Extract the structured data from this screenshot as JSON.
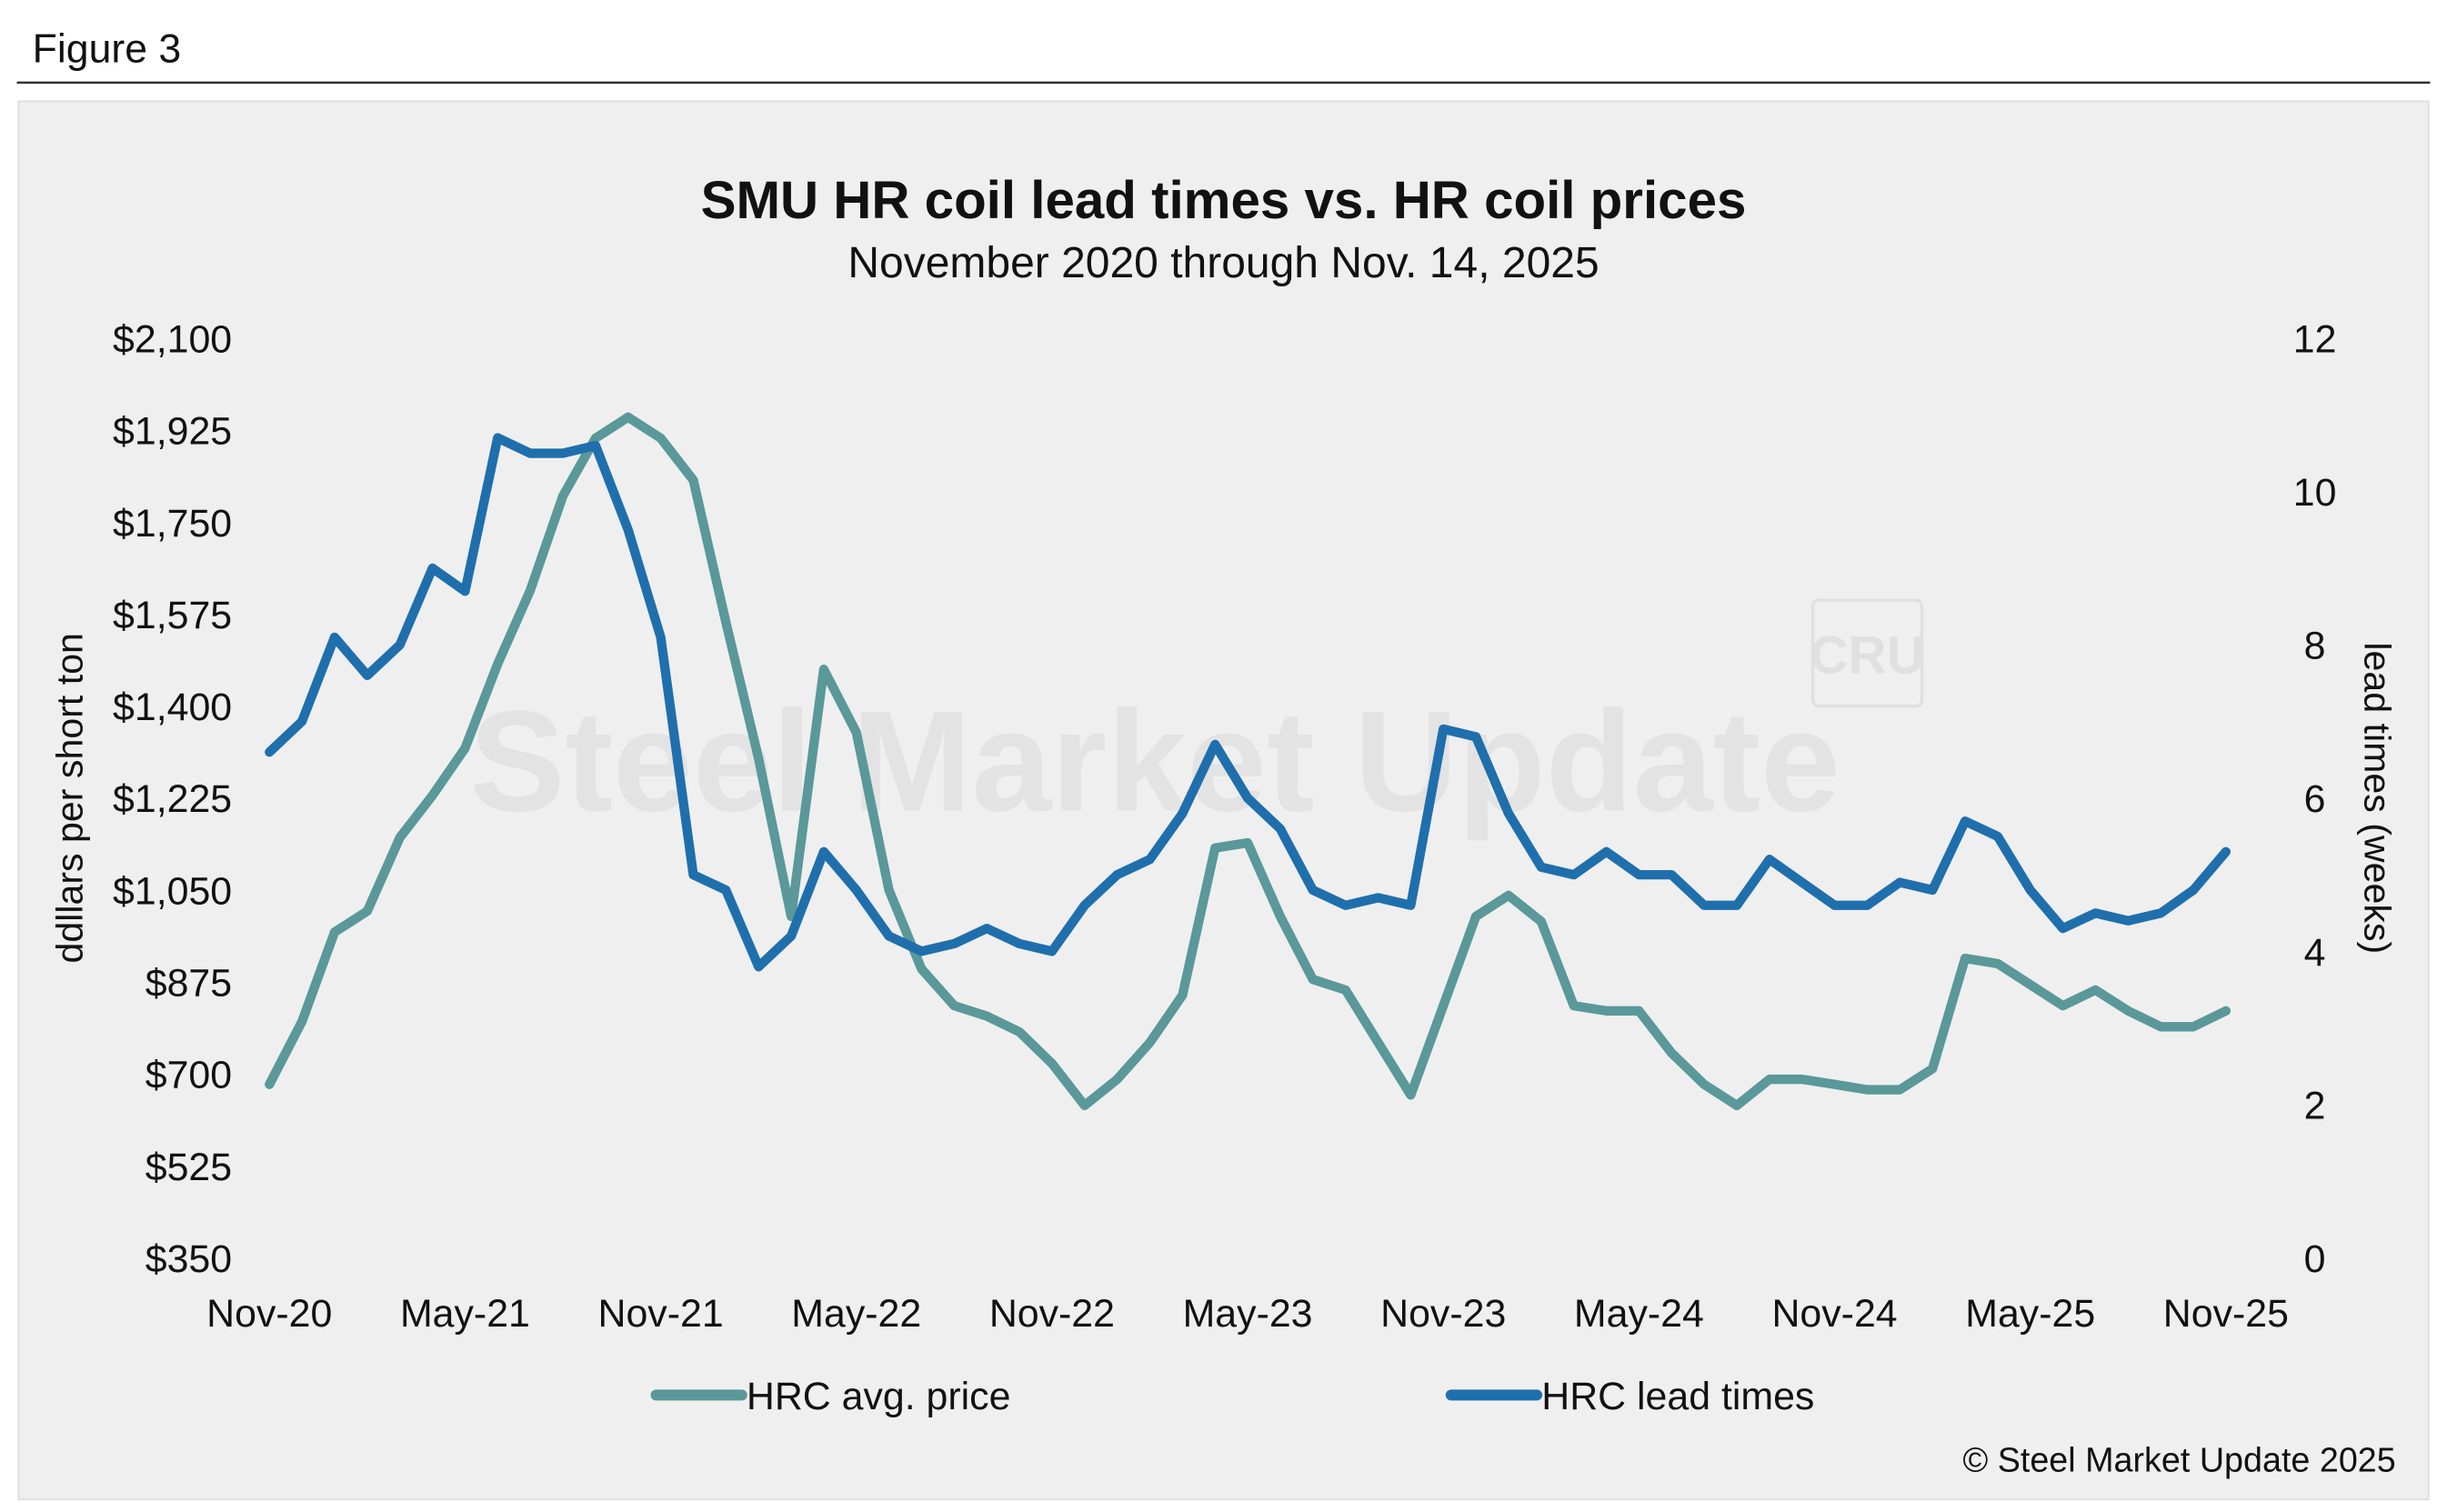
{
  "figure_label": "Figure 3",
  "copyright": "© Steel Market Update 2025",
  "watermark": "Steel Market Update",
  "watermark_logo": "CRU",
  "chart_data": {
    "type": "line",
    "title": "SMU HR coil lead times vs. HR coil prices",
    "subtitle": "November 2020 through Nov. 14, 2025",
    "ylabel": "ddllars per short ton",
    "y2label": "lead times (weeks)",
    "categories": [
      "Nov-20",
      null,
      null,
      null,
      null,
      null,
      "May-21",
      null,
      null,
      null,
      null,
      null,
      "Nov-21",
      null,
      null,
      null,
      null,
      null,
      "May-22",
      null,
      null,
      null,
      null,
      null,
      "Nov-22",
      null,
      null,
      null,
      null,
      null,
      "May-23",
      null,
      null,
      null,
      null,
      null,
      "Nov-23",
      null,
      null,
      null,
      null,
      null,
      "May-24",
      null,
      null,
      null,
      null,
      null,
      "Nov-24",
      null,
      null,
      null,
      null,
      null,
      "May-25",
      null,
      null,
      null,
      null,
      null,
      "Nov-25"
    ],
    "ylim": [
      350,
      2100
    ],
    "yticks": [
      {
        "value": 350,
        "label": "$350"
      },
      {
        "value": 525,
        "label": "$525"
      },
      {
        "value": 700,
        "label": "$700"
      },
      {
        "value": 875,
        "label": "$875"
      },
      {
        "value": 1050,
        "label": "$1,050"
      },
      {
        "value": 1225,
        "label": "$1,225"
      },
      {
        "value": 1400,
        "label": "$1,400"
      },
      {
        "value": 1575,
        "label": "$1,575"
      },
      {
        "value": 1750,
        "label": "$1,750"
      },
      {
        "value": 1925,
        "label": "$1,925"
      },
      {
        "value": 2100,
        "label": "$2,100"
      }
    ],
    "y2lim": [
      0,
      12
    ],
    "y2ticks": [
      0,
      2,
      4,
      6,
      8,
      10,
      12
    ],
    "series": [
      {
        "name": "HRC avg. price",
        "color": "#5a9899",
        "axis": "y",
        "values": [
          680,
          800,
          970,
          1010,
          1150,
          1230,
          1320,
          1480,
          1620,
          1800,
          1910,
          1950,
          1910,
          1830,
          1560,
          1300,
          1000,
          1470,
          1350,
          1050,
          900,
          830,
          810,
          780,
          720,
          640,
          690,
          760,
          850,
          1130,
          1140,
          1000,
          880,
          860,
          760,
          660,
          830,
          1000,
          1040,
          990,
          830,
          820,
          820,
          740,
          680,
          640,
          690,
          690,
          680,
          670,
          670,
          710,
          920,
          910,
          870,
          830,
          860,
          820,
          790,
          790,
          820
        ]
      },
      {
        "name": "HRC lead times",
        "color": "#1f6fad",
        "axis": "y2",
        "values": [
          6.6,
          7.0,
          8.1,
          7.6,
          8.0,
          9.0,
          8.7,
          10.7,
          10.5,
          10.5,
          10.6,
          9.5,
          8.1,
          5.0,
          4.8,
          3.8,
          4.2,
          5.3,
          4.8,
          4.2,
          4.0,
          4.1,
          4.3,
          4.1,
          4.0,
          4.6,
          5.0,
          5.2,
          5.8,
          6.7,
          6.0,
          5.6,
          4.8,
          4.6,
          4.7,
          4.6,
          6.9,
          6.8,
          5.8,
          5.1,
          5.0,
          5.3,
          5.0,
          5.0,
          4.6,
          4.6,
          5.2,
          4.9,
          4.6,
          4.6,
          4.9,
          4.8,
          5.7,
          5.5,
          4.8,
          4.3,
          4.5,
          4.4,
          4.5,
          4.8,
          5.3
        ]
      }
    ]
  }
}
